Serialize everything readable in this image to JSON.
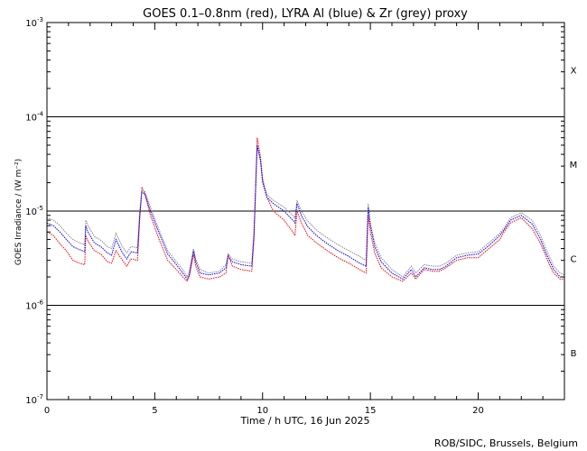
{
  "chart_data": {
    "type": "line",
    "title": "GOES 0.1–0.8nm (red), LYRA Al (blue) & Zr (grey) proxy",
    "xlabel": "Time / h UTC, 16 Jun 2025",
    "ylabel": "GOES Irradiance / (W m⁻²)",
    "credit": "ROB/SIDC, Brussels, Belgium",
    "xlim": [
      0,
      24
    ],
    "ylim": [
      1e-07,
      0.001
    ],
    "yscale": "log",
    "x_ticks": [
      0,
      5,
      10,
      15,
      20
    ],
    "x_tick_labels": [
      "0",
      "5",
      "10",
      "15",
      "20"
    ],
    "y_tick_labels": [
      {
        "value": 1e-07,
        "base": "10",
        "exp": "-7"
      },
      {
        "value": 1e-06,
        "base": "10",
        "exp": "-6"
      },
      {
        "value": 1e-05,
        "base": "10",
        "exp": "-5"
      },
      {
        "value": 0.0001,
        "base": "10",
        "exp": "-4"
      },
      {
        "value": 0.001,
        "base": "10",
        "exp": "-3"
      }
    ],
    "flare_classes": [
      {
        "label": "X",
        "value": 0.000316
      },
      {
        "label": "M",
        "value": 3.16e-05
      },
      {
        "label": "C",
        "value": 3.16e-06
      },
      {
        "label": "B",
        "value": 3.16e-07
      }
    ],
    "threshold_lines": [
      1e-06,
      1e-05,
      0.0001
    ],
    "series": [
      {
        "color": "#ff0000",
        "x": [
          0.0,
          0.3,
          0.6,
          0.9,
          1.2,
          1.5,
          1.75,
          1.8,
          1.9,
          2.2,
          2.5,
          2.8,
          3.0,
          3.2,
          3.5,
          3.7,
          3.9,
          4.2,
          4.3,
          4.4,
          4.55,
          4.8,
          5.2,
          5.6,
          6.0,
          6.3,
          6.5,
          6.6,
          6.8,
          6.9,
          7.1,
          7.5,
          8.0,
          8.3,
          8.4,
          8.6,
          9.0,
          9.5,
          9.6,
          9.75,
          9.9,
          10.0,
          10.2,
          10.5,
          11.0,
          11.4,
          11.5,
          11.6,
          11.8,
          12.1,
          12.5,
          13.0,
          13.5,
          14.0,
          14.5,
          14.8,
          14.9,
          15.0,
          15.2,
          15.5,
          16.0,
          16.5,
          16.9,
          17.1,
          17.5,
          17.9,
          18.2,
          18.5,
          19.0,
          19.5,
          20.0,
          20.5,
          21.0,
          21.2,
          21.5,
          22.0,
          22.5,
          22.9,
          23.1,
          23.3,
          23.5,
          23.8,
          24.0
        ],
        "y": [
          6e-06,
          5.5e-06,
          4.5e-06,
          3.8e-06,
          3e-06,
          2.8e-06,
          2.7e-06,
          5.5e-06,
          4.8e-06,
          3.8e-06,
          3.5e-06,
          2.9e-06,
          2.8e-06,
          3.8e-06,
          3e-06,
          2.6e-06,
          3.1e-06,
          3e-06,
          8e-06,
          1.8e-05,
          1.5e-05,
          9e-06,
          5e-06,
          3e-06,
          2.4e-06,
          2e-06,
          1.8e-06,
          2e-06,
          3.5e-06,
          2.6e-06,
          2e-06,
          1.9e-06,
          2e-06,
          2.2e-06,
          3.5e-06,
          2.6e-06,
          2.4e-06,
          2.3e-06,
          5e-06,
          6e-05,
          3.8e-05,
          2.2e-05,
          1.4e-05,
          1e-05,
          8e-06,
          6e-06,
          5.5e-06,
          1e-05,
          7.5e-06,
          5.5e-06,
          4.6e-06,
          3.8e-06,
          3.2e-06,
          2.8e-06,
          2.4e-06,
          2.2e-06,
          9e-06,
          6e-06,
          3.6e-06,
          2.5e-06,
          2e-06,
          1.8e-06,
          2.2e-06,
          1.9e-06,
          2.4e-06,
          2.3e-06,
          2.3e-06,
          2.5e-06,
          3e-06,
          3.2e-06,
          3.2e-06,
          4e-06,
          5e-06,
          6e-06,
          7.5e-06,
          8.5e-06,
          6.5e-06,
          4.5e-06,
          3.5e-06,
          2.7e-06,
          2.2e-06,
          1.9e-06,
          1.9e-06
        ]
      },
      {
        "color": "#0000ff",
        "x": [
          0.0,
          0.3,
          0.6,
          0.9,
          1.2,
          1.5,
          1.75,
          1.8,
          1.9,
          2.2,
          2.5,
          2.8,
          3.0,
          3.2,
          3.5,
          3.7,
          3.9,
          4.2,
          4.3,
          4.4,
          4.55,
          4.8,
          5.2,
          5.6,
          6.0,
          6.3,
          6.5,
          6.6,
          6.8,
          6.9,
          7.1,
          7.5,
          8.0,
          8.3,
          8.4,
          8.6,
          9.0,
          9.5,
          9.6,
          9.75,
          9.9,
          10.0,
          10.2,
          10.5,
          11.0,
          11.4,
          11.5,
          11.6,
          11.8,
          12.1,
          12.5,
          13.0,
          13.5,
          14.0,
          14.5,
          14.8,
          14.9,
          15.0,
          15.2,
          15.5,
          16.0,
          16.5,
          16.9,
          17.1,
          17.5,
          17.9,
          18.2,
          18.5,
          19.0,
          19.5,
          20.0,
          20.5,
          21.0,
          21.2,
          21.5,
          22.0,
          22.5,
          22.9,
          23.1,
          23.3,
          23.5,
          23.8,
          24.0
        ],
        "y": [
          7.5e-06,
          7e-06,
          6e-06,
          5e-06,
          4.2e-06,
          3.9e-06,
          3.7e-06,
          7e-06,
          6e-06,
          4.6e-06,
          4.2e-06,
          3.6e-06,
          3.4e-06,
          5e-06,
          3.6e-06,
          3.1e-06,
          3.7e-06,
          3.6e-06,
          9e-06,
          1.6e-05,
          1.5e-05,
          1e-05,
          5.8e-06,
          3.5e-06,
          2.7e-06,
          2.2e-06,
          1.9e-06,
          2.1e-06,
          3.8e-06,
          2.9e-06,
          2.2e-06,
          2.1e-06,
          2.2e-06,
          2.5e-06,
          3.3e-06,
          2.9e-06,
          2.7e-06,
          2.6e-06,
          5.5e-06,
          5e-05,
          3.5e-05,
          2e-05,
          1.4e-05,
          1.2e-05,
          1e-05,
          8e-06,
          7.5e-06,
          1.2e-05,
          9e-06,
          6.8e-06,
          5.5e-06,
          4.5e-06,
          3.8e-06,
          3.3e-06,
          2.8e-06,
          2.6e-06,
          1.1e-05,
          7e-06,
          4.2e-06,
          2.9e-06,
          2.2e-06,
          1.9e-06,
          2.4e-06,
          2e-06,
          2.5e-06,
          2.4e-06,
          2.4e-06,
          2.6e-06,
          3.2e-06,
          3.4e-06,
          3.5e-06,
          4.3e-06,
          5.5e-06,
          6.3e-06,
          8e-06,
          9e-06,
          7.3e-06,
          5e-06,
          3.8e-06,
          3e-06,
          2.4e-06,
          2e-06,
          2e-06
        ]
      },
      {
        "color": "#888888",
        "x": [
          0.0,
          0.3,
          0.6,
          0.9,
          1.2,
          1.5,
          1.75,
          1.8,
          1.9,
          2.2,
          2.5,
          2.8,
          3.0,
          3.2,
          3.5,
          3.7,
          3.9,
          4.2,
          4.3,
          4.4,
          4.55,
          4.8,
          5.2,
          5.6,
          6.0,
          6.3,
          6.5,
          6.6,
          6.8,
          6.9,
          7.1,
          7.5,
          8.0,
          8.3,
          8.4,
          8.6,
          9.0,
          9.5,
          9.6,
          9.75,
          9.9,
          10.0,
          10.2,
          10.5,
          11.0,
          11.4,
          11.5,
          11.6,
          11.8,
          12.1,
          12.5,
          13.0,
          13.5,
          14.0,
          14.5,
          14.8,
          14.9,
          15.0,
          15.2,
          15.5,
          16.0,
          16.5,
          16.9,
          17.1,
          17.5,
          17.9,
          18.2,
          18.5,
          19.0,
          19.5,
          20.0,
          20.5,
          21.0,
          21.2,
          21.5,
          22.0,
          22.5,
          22.9,
          23.1,
          23.3,
          23.5,
          23.8,
          24.0
        ],
        "y": [
          8.5e-06,
          8e-06,
          7e-06,
          5.8e-06,
          5e-06,
          4.6e-06,
          4.4e-06,
          8e-06,
          7e-06,
          5.4e-06,
          4.9e-06,
          4.2e-06,
          4e-06,
          5.8e-06,
          4.2e-06,
          3.6e-06,
          4.2e-06,
          4.1e-06,
          1e-05,
          1.7e-05,
          1.6e-05,
          1.1e-05,
          6.3e-06,
          3.8e-06,
          2.9e-06,
          2.4e-06,
          2e-06,
          2.3e-06,
          4e-06,
          3.1e-06,
          2.4e-06,
          2.2e-06,
          2.3e-06,
          2.7e-06,
          3.5e-06,
          3.1e-06,
          2.9e-06,
          2.8e-06,
          6e-06,
          4.8e-05,
          3.4e-05,
          2.1e-05,
          1.5e-05,
          1.3e-05,
          1.1e-05,
          9e-06,
          8.5e-06,
          1.3e-05,
          1e-05,
          7.8e-06,
          6.3e-06,
          5.2e-06,
          4.4e-06,
          3.8e-06,
          3.3e-06,
          3e-06,
          1.2e-05,
          7.5e-06,
          4.6e-06,
          3.2e-06,
          2.4e-06,
          2e-06,
          2.6e-06,
          2.2e-06,
          2.7e-06,
          2.6e-06,
          2.6e-06,
          2.8e-06,
          3.4e-06,
          3.6e-06,
          3.7e-06,
          4.6e-06,
          5.8e-06,
          6.6e-06,
          8.5e-06,
          9.6e-06,
          8e-06,
          5.5e-06,
          4.2e-06,
          3.3e-06,
          2.6e-06,
          2.2e-06,
          2.1e-06
        ]
      }
    ]
  }
}
